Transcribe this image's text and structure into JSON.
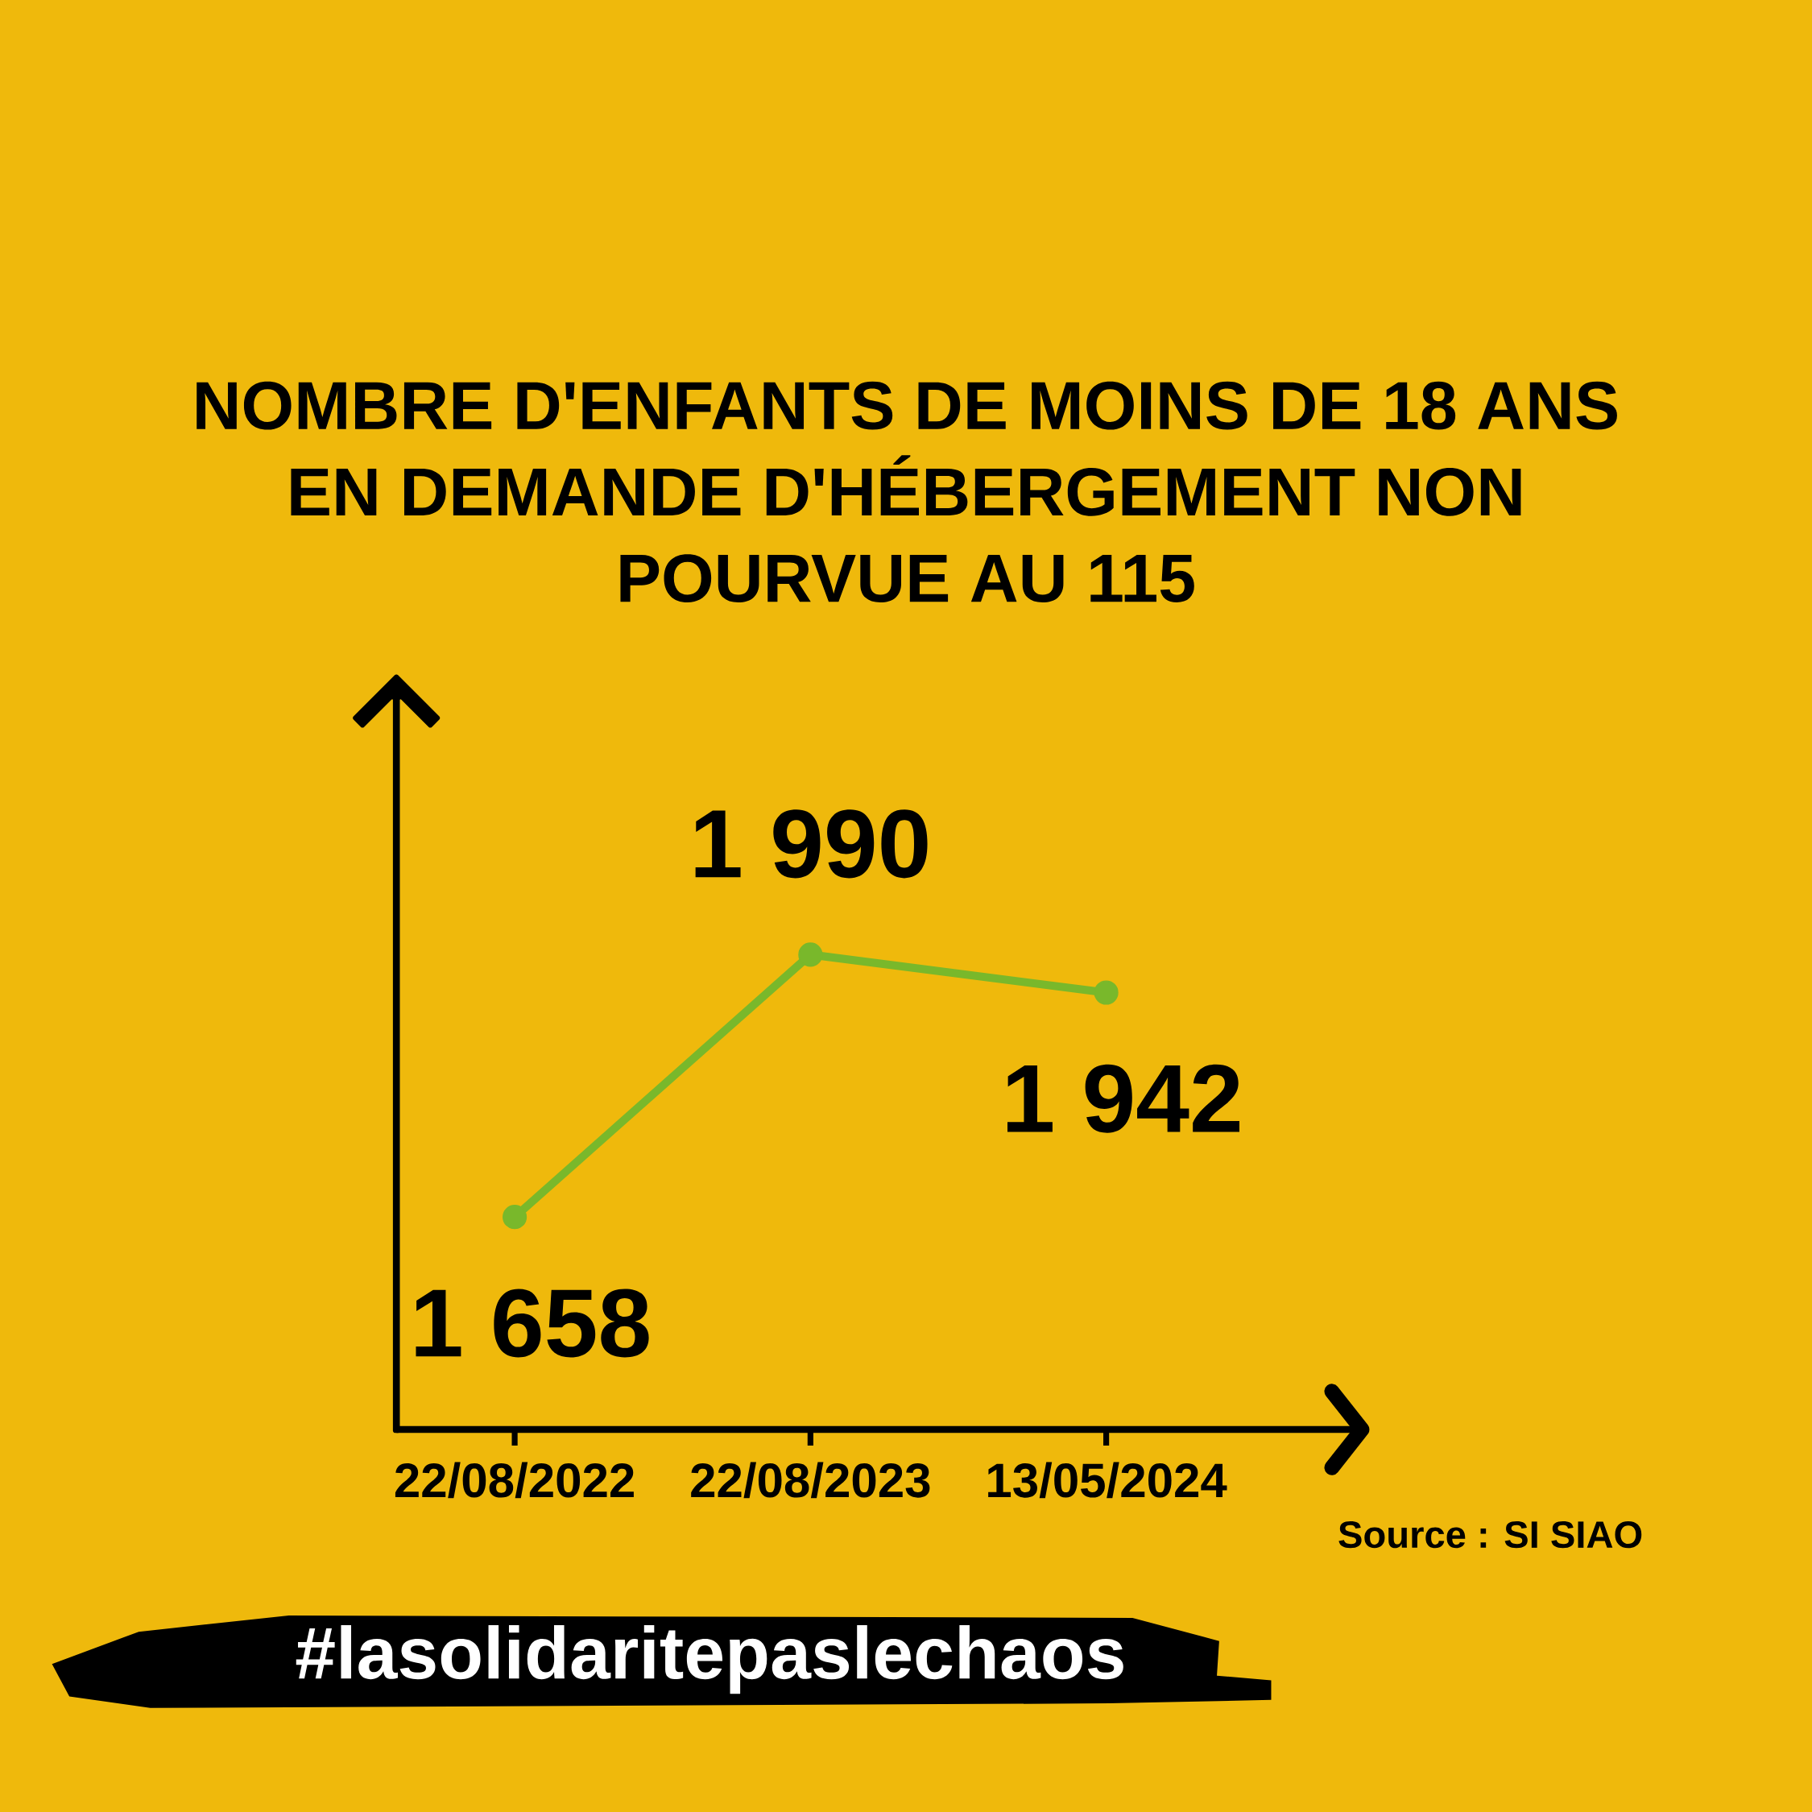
{
  "chart_data": {
    "type": "line",
    "title": "NOMBRE D'ENFANTS DE MOINS DE 18 ANS EN DEMANDE D'HÉBERGEMENT NON POURVUE AU 115",
    "categories": [
      "22/08/2022",
      "22/08/2023",
      "13/05/2024"
    ],
    "values": [
      1658,
      1990,
      1942
    ],
    "color": "#79b82b",
    "value_labels": [
      "1 658",
      "1 990",
      "1 942"
    ],
    "marker": "circle",
    "line_style": "solid",
    "tick_labels": "x",
    "annotations": [
      "Source : SI SIAO",
      "#lasolidaritepaslechaos"
    ]
  }
}
